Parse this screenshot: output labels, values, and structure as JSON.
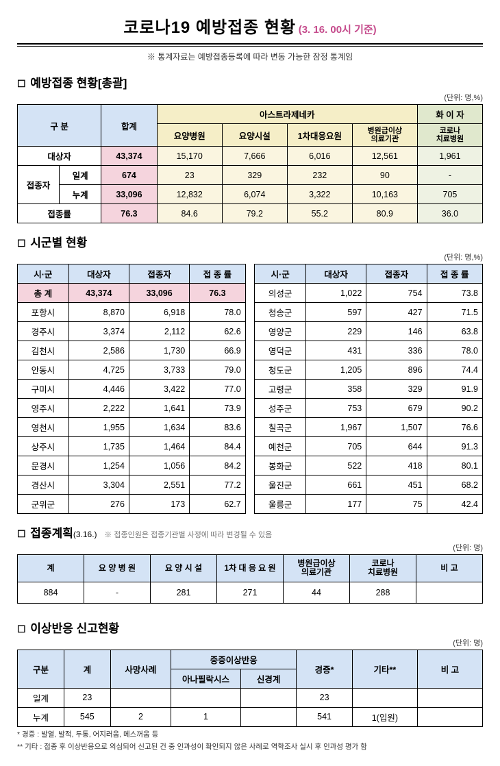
{
  "title": "코로나19 예방접종 현황",
  "title_date": "(3. 16. 00시 기준)",
  "header_note": "※ 통계자료는 예방접종등록에 따라 변동 가능한 잠정 통계임",
  "sec1": {
    "title": "예방접종 현황[총괄]",
    "unit": "(단위: 명,%)",
    "h_gubun": "구 분",
    "h_total": "합계",
    "h_az": "아스트라제네카",
    "h_pf": "화 이 자",
    "h_c1": "요양병원",
    "h_c2": "요양시설",
    "h_c3": "1차대응요원",
    "h_c4": "병원급이상\n의료기관",
    "h_c5": "코로나\n치료병원",
    "r_target": "대상자",
    "r_vac": "접종자",
    "r_daily": "일계",
    "r_cum": "누계",
    "r_rate": "접종률",
    "target": [
      "43,374",
      "15,170",
      "7,666",
      "6,016",
      "12,561",
      "1,961"
    ],
    "daily": [
      "674",
      "23",
      "329",
      "232",
      "90",
      "-"
    ],
    "cum": [
      "33,096",
      "12,832",
      "6,074",
      "3,322",
      "10,163",
      "705"
    ],
    "rate": [
      "76.3",
      "84.6",
      "79.2",
      "55.2",
      "80.9",
      "36.0"
    ]
  },
  "sec2": {
    "title": "시군별 현황",
    "unit": "(단위: 명,%)",
    "h_city": "시·군",
    "h_target": "대상자",
    "h_vac": "접종자",
    "h_rate": "접 종 률",
    "total_label": "총 계",
    "left": [
      [
        "포항시",
        "8,870",
        "6,918",
        "78.0"
      ],
      [
        "경주시",
        "3,374",
        "2,112",
        "62.6"
      ],
      [
        "김천시",
        "2,586",
        "1,730",
        "66.9"
      ],
      [
        "안동시",
        "4,725",
        "3,733",
        "79.0"
      ],
      [
        "구미시",
        "4,446",
        "3,422",
        "77.0"
      ],
      [
        "영주시",
        "2,222",
        "1,641",
        "73.9"
      ],
      [
        "영천시",
        "1,955",
        "1,634",
        "83.6"
      ],
      [
        "상주시",
        "1,735",
        "1,464",
        "84.4"
      ],
      [
        "문경시",
        "1,254",
        "1,056",
        "84.2"
      ],
      [
        "경산시",
        "3,304",
        "2,551",
        "77.2"
      ],
      [
        "군위군",
        "276",
        "173",
        "62.7"
      ]
    ],
    "right": [
      [
        "의성군",
        "1,022",
        "754",
        "73.8"
      ],
      [
        "청송군",
        "597",
        "427",
        "71.5"
      ],
      [
        "영양군",
        "229",
        "146",
        "63.8"
      ],
      [
        "영덕군",
        "431",
        "336",
        "78.0"
      ],
      [
        "청도군",
        "1,205",
        "896",
        "74.4"
      ],
      [
        "고령군",
        "358",
        "329",
        "91.9"
      ],
      [
        "성주군",
        "753",
        "679",
        "90.2"
      ],
      [
        "칠곡군",
        "1,967",
        "1,507",
        "76.6"
      ],
      [
        "예천군",
        "705",
        "644",
        "91.3"
      ],
      [
        "봉화군",
        "522",
        "418",
        "80.1"
      ],
      [
        "울진군",
        "661",
        "451",
        "68.2"
      ],
      [
        "울릉군",
        "177",
        "75",
        "42.4"
      ]
    ],
    "total_row": [
      "43,374",
      "33,096",
      "76.3"
    ]
  },
  "sec3": {
    "title": "접종계획",
    "date": "(3.16.)",
    "sub": "※ 접종인원은 접종기관별 사정에 따라 변경될 수 있음",
    "unit": "(단위: 명)",
    "h": [
      "계",
      "요 양 병 원",
      "요 양 시 설",
      "1차 대 응 요 원",
      "병원급이상\n의료기관",
      "코로나\n치료병원",
      "비 고"
    ],
    "row": [
      "884",
      "-",
      "281",
      "271",
      "44",
      "288",
      ""
    ]
  },
  "sec4": {
    "title": "이상반응 신고현황",
    "unit": "(단위: 명)",
    "h_gubun": "구분",
    "h_total": "계",
    "h_death": "사망사례",
    "h_severe": "중증이상반응",
    "h_ana": "아나필락시스",
    "h_neuro": "신경계",
    "h_mild": "경증*",
    "h_etc": "기타**",
    "h_note": "비 고",
    "r_daily": "일계",
    "r_cum": "누계",
    "daily": [
      "23",
      "",
      "",
      "",
      "23",
      "",
      ""
    ],
    "cum": [
      "545",
      "2",
      "1",
      "",
      "541",
      "1(입원)",
      ""
    ],
    "fn1": "* 경증 : 발열, 발적, 두통, 어지러움, 메스꺼움 등",
    "fn2": "** 기타 : 접종 후 이상반응으로 의심되어 신고된 건 중 인과성이 확인되지 않은 사례로 역학조사 실시 후 인과성 평가 함"
  }
}
